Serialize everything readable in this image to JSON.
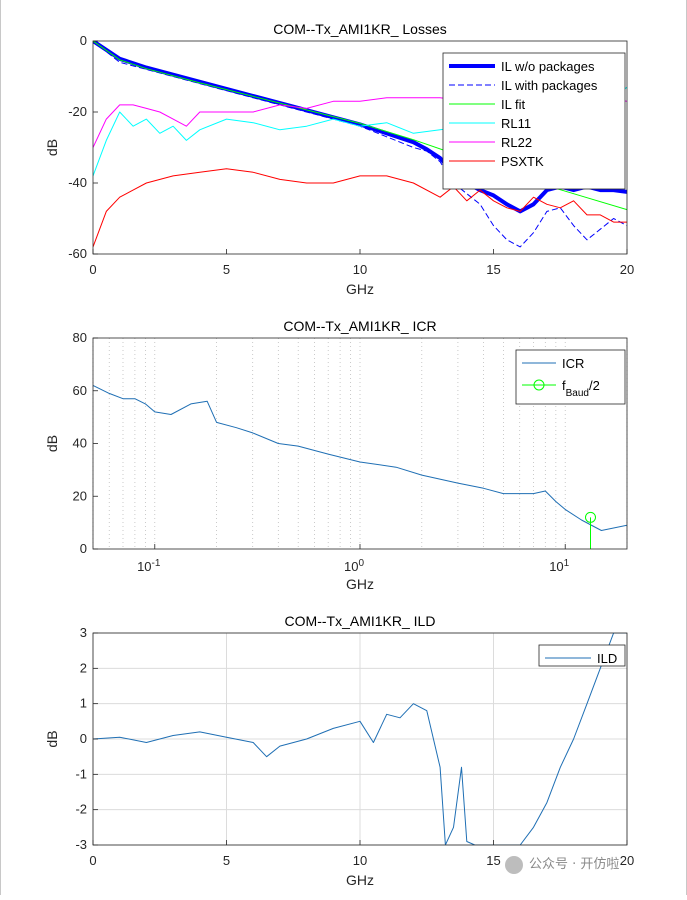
{
  "chart_data": [
    {
      "type": "line",
      "title": "COM--Tx_AMI1KR_ Losses",
      "xlabel": "GHz",
      "ylabel": "dB",
      "xlim": [
        0,
        20
      ],
      "ylim": [
        -60,
        0
      ],
      "xticks": [
        0,
        5,
        10,
        15,
        20
      ],
      "yticks": [
        -60,
        -40,
        -20,
        0
      ],
      "legend_position": "top-right",
      "grid": false,
      "series": [
        {
          "name": "IL w/o packages",
          "color": "#0000ff",
          "style": "solid",
          "width": 4,
          "x": [
            0,
            1,
            2,
            3,
            4,
            5,
            6,
            7,
            8,
            9,
            10,
            11,
            12,
            12.5,
            13,
            13.5,
            14,
            14.5,
            15,
            15.5,
            16,
            16.5,
            17,
            17.5,
            18,
            18.5,
            19,
            19.5,
            20
          ],
          "y": [
            0,
            -5,
            -7.5,
            -9.5,
            -11.5,
            -13.5,
            -15.5,
            -17.5,
            -19.5,
            -21.5,
            -23.5,
            -26,
            -28.5,
            -30.5,
            -33,
            -37,
            -40,
            -42,
            -43.5,
            -46,
            -48,
            -46,
            -42,
            -41,
            -42,
            -41,
            -42,
            -42,
            -42.5
          ]
        },
        {
          "name": "IL with packages",
          "color": "#0000ff",
          "style": "dashed",
          "width": 1,
          "x": [
            0,
            1,
            2,
            3,
            4,
            5,
            6,
            7,
            8,
            9,
            10,
            11,
            12,
            12.5,
            13,
            13.5,
            14,
            14.5,
            15,
            15.5,
            16,
            16.5,
            17,
            17.5,
            18,
            18.5,
            19,
            19.5,
            20
          ],
          "y": [
            0,
            -6,
            -8,
            -10,
            -12,
            -14,
            -16,
            -18,
            -20,
            -22,
            -24,
            -27,
            -30,
            -31,
            -34,
            -40,
            -43,
            -46,
            -52,
            -56,
            -58,
            -54,
            -48,
            -47,
            -52,
            -56,
            -53,
            -50,
            -52
          ]
        },
        {
          "name": "IL fit",
          "color": "#00ff00",
          "style": "solid",
          "width": 1,
          "x": [
            0,
            1,
            2,
            4,
            6,
            8,
            10,
            12,
            14,
            16,
            18,
            20
          ],
          "y": [
            0,
            -5.3,
            -7.8,
            -11.8,
            -15.6,
            -19.4,
            -23.2,
            -27.8,
            -33,
            -38.5,
            -43,
            -47.5
          ]
        },
        {
          "name": "RL11",
          "color": "#00ffff",
          "style": "solid",
          "width": 1,
          "x": [
            0,
            0.5,
            1,
            1.5,
            2,
            2.5,
            3,
            3.5,
            4,
            5,
            6,
            7,
            8,
            9,
            10,
            11,
            12,
            13,
            14,
            15,
            16,
            17,
            18,
            19,
            20
          ],
          "y": [
            -38,
            -28,
            -20,
            -24,
            -22,
            -26,
            -24,
            -28,
            -25,
            -22,
            -23,
            -25,
            -24,
            -22,
            -24,
            -23,
            -26,
            -25,
            -24,
            -23,
            -22,
            -21,
            -20,
            -19,
            -13
          ]
        },
        {
          "name": "RL22",
          "color": "#ff00ff",
          "style": "solid",
          "width": 1,
          "x": [
            0,
            0.5,
            1,
            1.5,
            2,
            2.5,
            3,
            3.5,
            4,
            5,
            6,
            7,
            8,
            9,
            10,
            11,
            12,
            13,
            14,
            15,
            16,
            17,
            18,
            19,
            20
          ],
          "y": [
            -30,
            -22,
            -18,
            -18,
            -19,
            -20,
            -22,
            -24,
            -20,
            -20,
            -20,
            -18,
            -19,
            -17,
            -17,
            -16,
            -16,
            -16,
            -17,
            -17,
            -18,
            -18,
            -16,
            -16,
            -17
          ]
        },
        {
          "name": "PSXTK",
          "color": "#ff0000",
          "style": "solid",
          "width": 1,
          "x": [
            0,
            0.5,
            1,
            1.5,
            2,
            3,
            4,
            5,
            6,
            7,
            8,
            9,
            10,
            11,
            12,
            13,
            13.5,
            14,
            14.5,
            15,
            15.5,
            16,
            16.5,
            17,
            17.5,
            18,
            18.5,
            19,
            19.5,
            20
          ],
          "y": [
            -58,
            -48,
            -44,
            -42,
            -40,
            -38,
            -37,
            -36,
            -37,
            -39,
            -40,
            -40,
            -38,
            -38,
            -40,
            -44,
            -41,
            -45,
            -42,
            -45,
            -47,
            -48,
            -44,
            -46,
            -47,
            -45,
            -49,
            -49,
            -51,
            -51
          ]
        }
      ]
    },
    {
      "type": "line",
      "title": "COM--Tx_AMI1KR_ ICR",
      "xlabel": "GHz",
      "ylabel": "dB",
      "xscale": "log",
      "xlim": [
        0.05,
        20
      ],
      "ylim": [
        0,
        80
      ],
      "xtick_labels": [
        "10^{-1}",
        "10^{0}",
        "10^{1}"
      ],
      "yticks": [
        0,
        20,
        40,
        60,
        80
      ],
      "grid": "x-minor-dotted",
      "legend_position": "top-right",
      "series": [
        {
          "name": "ICR",
          "color": "#1f6fb4",
          "style": "solid",
          "x": [
            0.05,
            0.06,
            0.07,
            0.08,
            0.09,
            0.1,
            0.12,
            0.15,
            0.18,
            0.2,
            0.25,
            0.3,
            0.4,
            0.5,
            0.7,
            1,
            1.5,
            2,
            3,
            4,
            5,
            6,
            7,
            8,
            9,
            10,
            12,
            15,
            20
          ],
          "y": [
            62,
            59,
            57,
            57,
            55,
            52,
            51,
            55,
            56,
            48,
            46,
            44,
            40,
            39,
            36,
            33,
            31,
            28,
            25,
            23,
            21,
            21,
            21,
            22,
            18,
            15,
            11,
            7,
            9
          ]
        },
        {
          "name": "f_{Baud}/2",
          "color": "#00ff00",
          "style": "solid",
          "marker": "circle",
          "x": [
            13.28,
            13.28
          ],
          "y": [
            0,
            12
          ]
        }
      ]
    },
    {
      "type": "line",
      "title": "COM--Tx_AMI1KR_ ILD",
      "xlabel": "GHz",
      "ylabel": "dB",
      "xlim": [
        0,
        20
      ],
      "ylim": [
        -3,
        3
      ],
      "xticks": [
        0,
        5,
        10,
        15,
        20
      ],
      "yticks": [
        -3,
        -2,
        -1,
        0,
        1,
        2,
        3
      ],
      "grid": true,
      "legend_position": "top-right",
      "series": [
        {
          "name": "ILD",
          "color": "#1f6fb4",
          "style": "solid",
          "x": [
            0,
            1,
            2,
            3,
            4,
            5,
            6,
            6.5,
            7,
            8,
            9,
            10,
            10.5,
            11,
            11.5,
            12,
            12.5,
            13,
            13.2,
            13.5,
            13.8,
            14,
            14.3,
            14.6,
            15,
            15.3,
            15.6,
            16,
            16.5,
            17,
            17.5,
            18,
            18.5,
            19,
            19.5,
            20
          ],
          "y": [
            0,
            0.05,
            -0.1,
            0.1,
            0.2,
            0.05,
            -0.1,
            -0.5,
            -0.2,
            0,
            0.3,
            0.5,
            -0.1,
            0.7,
            0.6,
            1,
            0.8,
            -0.8,
            -3,
            -2.5,
            -0.8,
            -2.9,
            -3,
            -3,
            -3,
            -3,
            -3,
            -3,
            -2.5,
            -1.8,
            -0.8,
            0,
            1,
            2,
            3,
            3
          ]
        }
      ]
    }
  ],
  "watermark": {
    "text": "公众号 · 开仿啦"
  }
}
